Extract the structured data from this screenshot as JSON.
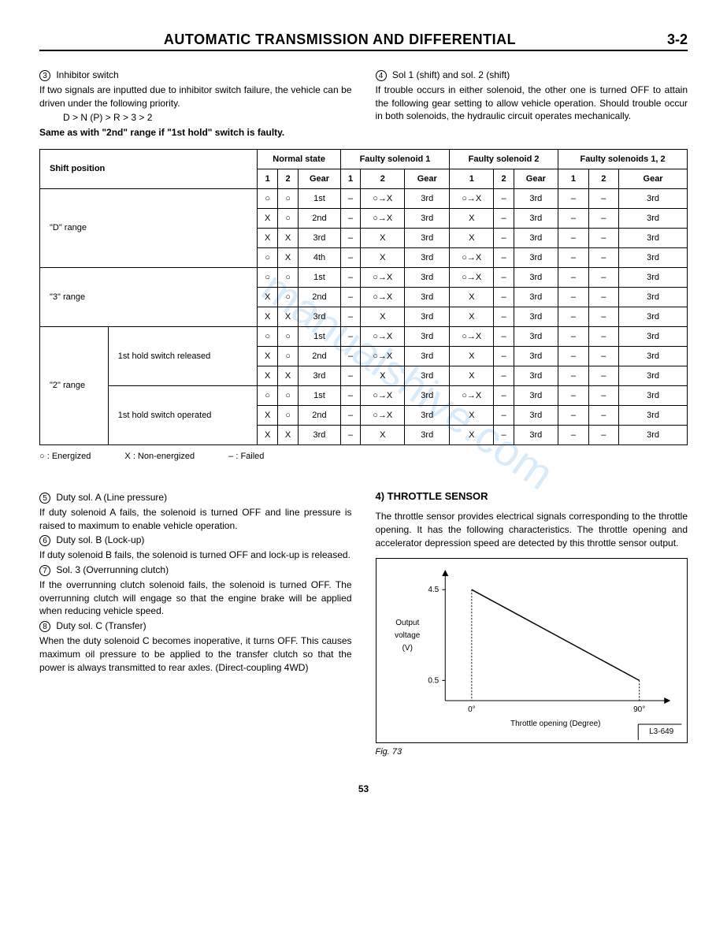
{
  "header": {
    "title": "AUTOMATIC TRANSMISSION AND DIFFERENTIAL",
    "page": "3-2"
  },
  "watermark": "manualshive.com",
  "intro_left": {
    "num": "3",
    "heading": "Inhibitor switch",
    "para": "If two signals are inputted due to inhibitor switch failure, the vehicle can be driven under the following priority.",
    "priority": "D > N (P) > R > 3 > 2",
    "bold_line": "Same as with \"2nd\" range if \"1st hold\" switch is faulty."
  },
  "intro_right": {
    "num": "4",
    "heading": "Sol 1 (shift) and sol. 2 (shift)",
    "para": "If trouble occurs in either solenoid, the other one is turned OFF to attain the following gear setting to allow vehicle operation. Should trouble occur in both solenoids, the hydraulic circuit operates mechanically."
  },
  "table": {
    "group_headers": [
      "Normal state",
      "Faulty solenoid 1",
      "Faulty solenoid 2",
      "Faulty solenoids 1, 2"
    ],
    "sub_headers": [
      "1",
      "2",
      "Gear"
    ],
    "shift_position": "Shift position",
    "ranges": [
      {
        "label": "\"D\" range",
        "sub": null,
        "rows": [
          [
            "○",
            "○",
            "1st",
            "–",
            "○→X",
            "3rd",
            "○→X",
            "–",
            "3rd",
            "–",
            "–",
            "3rd"
          ],
          [
            "X",
            "○",
            "2nd",
            "–",
            "○→X",
            "3rd",
            "X",
            "–",
            "3rd",
            "–",
            "–",
            "3rd"
          ],
          [
            "X",
            "X",
            "3rd",
            "–",
            "X",
            "3rd",
            "X",
            "–",
            "3rd",
            "–",
            "–",
            "3rd"
          ],
          [
            "○",
            "X",
            "4th",
            "–",
            "X",
            "3rd",
            "○→X",
            "–",
            "3rd",
            "–",
            "–",
            "3rd"
          ]
        ]
      },
      {
        "label": "\"3\" range",
        "sub": null,
        "rows": [
          [
            "○",
            "○",
            "1st",
            "–",
            "○→X",
            "3rd",
            "○→X",
            "–",
            "3rd",
            "–",
            "–",
            "3rd"
          ],
          [
            "X",
            "○",
            "2nd",
            "–",
            "○→X",
            "3rd",
            "X",
            "–",
            "3rd",
            "–",
            "–",
            "3rd"
          ],
          [
            "X",
            "X",
            "3rd",
            "–",
            "X",
            "3rd",
            "X",
            "–",
            "3rd",
            "–",
            "–",
            "3rd"
          ]
        ]
      },
      {
        "label": "\"2\" range",
        "subs": [
          {
            "sub_label": "1st hold switch released",
            "rows": [
              [
                "○",
                "○",
                "1st",
                "–",
                "○→X",
                "3rd",
                "○→X",
                "–",
                "3rd",
                "–",
                "–",
                "3rd"
              ],
              [
                "X",
                "○",
                "2nd",
                "–",
                "○→X",
                "3rd",
                "X",
                "–",
                "3rd",
                "–",
                "–",
                "3rd"
              ],
              [
                "X",
                "X",
                "3rd",
                "–",
                "X",
                "3rd",
                "X",
                "–",
                "3rd",
                "–",
                "–",
                "3rd"
              ]
            ]
          },
          {
            "sub_label": "1st hold switch operated",
            "rows": [
              [
                "○",
                "○",
                "1st",
                "–",
                "○→X",
                "3rd",
                "○→X",
                "–",
                "3rd",
                "–",
                "–",
                "3rd"
              ],
              [
                "X",
                "○",
                "2nd",
                "–",
                "○→X",
                "3rd",
                "X",
                "–",
                "3rd",
                "–",
                "–",
                "3rd"
              ],
              [
                "X",
                "X",
                "3rd",
                "–",
                "X",
                "3rd",
                "X",
                "–",
                "3rd",
                "–",
                "–",
                "3rd"
              ]
            ]
          }
        ]
      }
    ],
    "legend": {
      "energized": "○ : Energized",
      "nonenergized": "X : Non-energized",
      "failed": "– : Failed"
    }
  },
  "lower_left": {
    "items": [
      {
        "num": "5",
        "heading": "Duty sol. A (Line pressure)",
        "text": "If duty solenoid A fails, the solenoid is turned OFF and line pressure is raised to maximum to enable vehicle operation."
      },
      {
        "num": "6",
        "heading": "Duty sol. B (Lock-up)",
        "text": "If duty solenoid B fails, the solenoid is turned OFF and lock-up is released."
      },
      {
        "num": "7",
        "heading": "Sol. 3 (Overrunning clutch)",
        "text": "If the overrunning clutch solenoid fails, the solenoid is turned OFF. The overrunning clutch will engage so that the engine brake will be applied when reducing vehicle speed."
      },
      {
        "num": "8",
        "heading": "Duty sol. C (Transfer)",
        "text": "When the duty solenoid C becomes inoperative, it turns OFF. This causes maximum oil pressure to be applied to the transfer clutch so that the power is always transmitted to rear axles. (Direct-coupling 4WD)"
      }
    ]
  },
  "lower_right": {
    "heading": "4) THROTTLE SENSOR",
    "para": "The throttle sensor provides electrical signals corresponding to the throttle opening. It has the following characteristics. The throttle opening and accelerator depression speed are detected by this throttle sensor output.",
    "chart": {
      "type": "line",
      "y_label": "Output voltage (V)",
      "x_label": "Throttle opening (Degree)",
      "y_ticks": [
        "4.5",
        "0.5"
      ],
      "x_ticks": [
        "0°",
        "90°"
      ],
      "box_code": "L3-649",
      "line_color": "#000000",
      "background": "#ffffff",
      "points": [
        [
          0.12,
          0.12
        ],
        [
          0.88,
          0.84
        ]
      ]
    },
    "fig": "Fig. 73"
  },
  "footer_page": "53"
}
